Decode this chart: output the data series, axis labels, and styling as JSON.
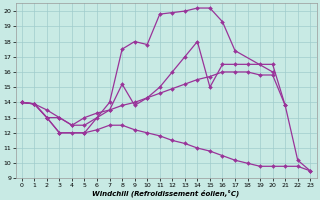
{
  "xlabel": "Windchill (Refroidissement éolien,°C)",
  "xlim": [
    -0.5,
    23.5
  ],
  "ylim": [
    9,
    20.5
  ],
  "yticks": [
    9,
    10,
    11,
    12,
    13,
    14,
    15,
    16,
    17,
    18,
    19,
    20
  ],
  "xticks": [
    0,
    1,
    2,
    3,
    4,
    5,
    6,
    7,
    8,
    9,
    10,
    11,
    12,
    13,
    14,
    15,
    16,
    17,
    18,
    19,
    20,
    21,
    22,
    23
  ],
  "background_color": "#c8eae4",
  "line_color": "#993399",
  "grid_color": "#a0cccc",
  "lines": [
    {
      "x": [
        0,
        1,
        2,
        3,
        5,
        7,
        8,
        9,
        10,
        11,
        12,
        13,
        14,
        15,
        16,
        17,
        20
      ],
      "y": [
        14,
        13.9,
        13.0,
        12.0,
        12.0,
        14.0,
        17.5,
        18.0,
        17.8,
        19.8,
        19.9,
        20.0,
        20.2,
        20.2,
        19.3,
        17.4,
        16.0
      ]
    },
    {
      "x": [
        0,
        1,
        2,
        3,
        4,
        5,
        6,
        7,
        8,
        9,
        10,
        11,
        12,
        13,
        14,
        15,
        16,
        17,
        18,
        19,
        20,
        21
      ],
      "y": [
        14,
        13.9,
        13.0,
        13.0,
        12.5,
        12.5,
        13.0,
        13.5,
        15.2,
        13.8,
        14.3,
        15.0,
        16.0,
        17.0,
        18.0,
        15.0,
        16.5,
        16.5,
        16.5,
        16.5,
        16.5,
        13.8
      ]
    },
    {
      "x": [
        0,
        1,
        2,
        3,
        4,
        5,
        6,
        7,
        8,
        9,
        10,
        11,
        12,
        13,
        14,
        15,
        16,
        17,
        18,
        19,
        20,
        21,
        22,
        23
      ],
      "y": [
        14,
        13.9,
        13.5,
        13.0,
        12.5,
        13.0,
        13.3,
        13.5,
        13.8,
        14.0,
        14.3,
        14.6,
        14.9,
        15.2,
        15.5,
        15.7,
        16.0,
        16.0,
        16.0,
        15.8,
        15.8,
        13.8,
        10.2,
        9.5
      ]
    },
    {
      "x": [
        0,
        1,
        2,
        3,
        4,
        5,
        6,
        7,
        8,
        9,
        10,
        11,
        12,
        13,
        14,
        15,
        16,
        17,
        18,
        19,
        20,
        21,
        22,
        23
      ],
      "y": [
        14,
        13.9,
        13.0,
        12.0,
        12.0,
        12.0,
        12.2,
        12.5,
        12.5,
        12.2,
        12.0,
        11.8,
        11.5,
        11.3,
        11.0,
        10.8,
        10.5,
        10.2,
        10.0,
        9.8,
        9.8,
        9.8,
        9.8,
        9.5
      ]
    }
  ]
}
